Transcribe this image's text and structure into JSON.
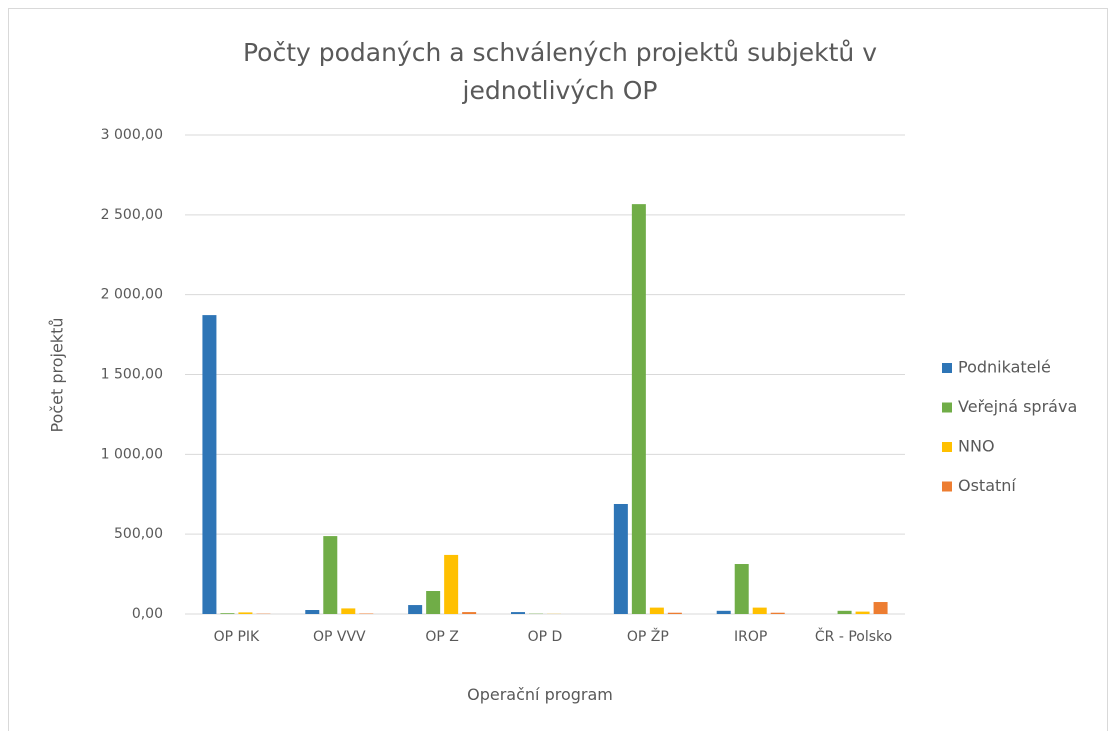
{
  "chart_data": {
    "type": "bar",
    "title": "Počty podaných a schválených projektů subjektů v jednotlivých OP",
    "x_label": "Operační program",
    "y_label": "Počet projektů",
    "categories": [
      "OP PIK",
      "OP VVV",
      "OP Z",
      "OP D",
      "OP ŽP",
      "IROP",
      "ČR - Polsko"
    ],
    "series": [
      {
        "name": "Podnikatelé",
        "color": "#2e75b6",
        "values": [
          1872,
          25,
          56,
          12,
          689,
          20,
          0
        ]
      },
      {
        "name": "Veřejná správa",
        "color": "#70ad47",
        "values": [
          5,
          488,
          144,
          2,
          2567,
          313,
          20
        ]
      },
      {
        "name": "NNO",
        "color": "#ffc000",
        "values": [
          10,
          35,
          370,
          1,
          40,
          40,
          15
        ]
      },
      {
        "name": "Ostatní",
        "color": "#ed7d31",
        "values": [
          2,
          3,
          12,
          0,
          8,
          8,
          75
        ]
      }
    ],
    "ylim": [
      0,
      3000
    ],
    "yticks": [
      {
        "value": 0,
        "label": "0,00"
      },
      {
        "value": 500,
        "label": "500,00"
      },
      {
        "value": 1000,
        "label": "1 000,00"
      },
      {
        "value": 1500,
        "label": "1 500,00"
      },
      {
        "value": 2000,
        "label": "2 000,00"
      },
      {
        "value": 2500,
        "label": "2 500,00"
      },
      {
        "value": 3000,
        "label": "3 000,00"
      }
    ],
    "grid": true,
    "legend": "right"
  }
}
